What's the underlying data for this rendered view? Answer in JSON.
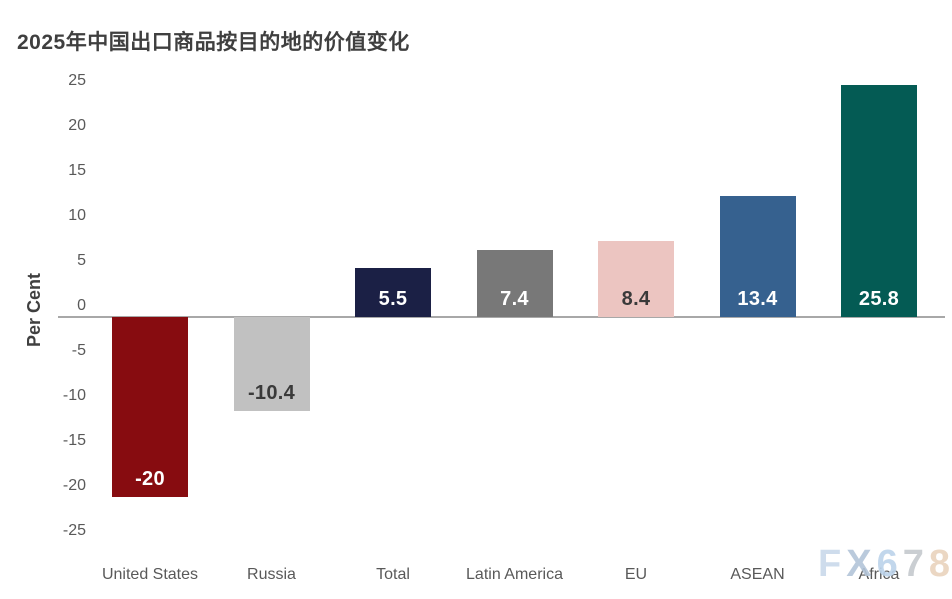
{
  "title": "2025年中国出口商品按目的地的价值变化",
  "chart_data": {
    "type": "bar",
    "title": "2025年中国出口商品按目的地的价值变化",
    "ylabel": "Per Cent",
    "ylim": [
      -25,
      25
    ],
    "yticks": [
      25,
      20,
      15,
      10,
      5,
      0,
      -5,
      -10,
      -15,
      -20,
      -25
    ],
    "grid": false,
    "legend": "none",
    "categories": [
      "United States",
      "Russia",
      "Total",
      "Latin America",
      "EU",
      "ASEAN",
      "Africa"
    ],
    "values": [
      -20,
      -10.4,
      5.5,
      7.4,
      8.4,
      13.4,
      25.8
    ],
    "value_labels": [
      "-20",
      "-10.4",
      "5.5",
      "7.4",
      "8.4",
      "13.4",
      "25.8"
    ],
    "bar_colors": [
      "#870c10",
      "#c1c1c1",
      "#1b2045",
      "#787878",
      "#ecc5c1",
      "#36618f",
      "#045b54"
    ],
    "value_label_colors": [
      "#ffffff",
      "#3a3a3a",
      "#ffffff",
      "#ffffff",
      "#3a3a3a",
      "#ffffff",
      "#ffffff"
    ],
    "axis_color": "#a8a8a8",
    "tick_label_color": "#595959",
    "category_label_color": "#595959",
    "title_color": "#3f3f3f"
  },
  "watermark": {
    "text": "FX678",
    "letter_colors": [
      "#c9d9ea",
      "#b3c5d9",
      "#bcd3ea",
      "#c5c9ce",
      "#e9d3bd"
    ]
  }
}
